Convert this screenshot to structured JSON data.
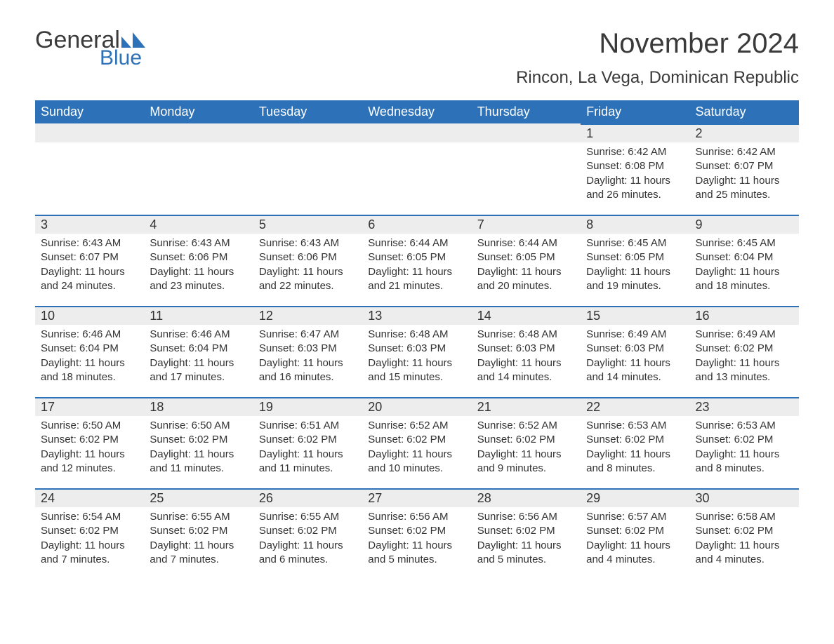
{
  "brand": {
    "name_part1": "General",
    "name_part2": "Blue",
    "flag_color": "#2d72b8",
    "text_color_dark": "#3a3a3a"
  },
  "title": "November 2024",
  "location": "Rincon, La Vega, Dominican Republic",
  "colors": {
    "header_bg": "#2d72b8",
    "header_text": "#ffffff",
    "daybar_bg": "#ededed",
    "daybar_border": "#2d72b8",
    "body_text": "#333333",
    "page_bg": "#ffffff"
  },
  "typography": {
    "title_fontsize": 40,
    "location_fontsize": 24,
    "weekday_fontsize": 18,
    "daynum_fontsize": 18,
    "body_fontsize": 15,
    "font_family": "Arial"
  },
  "weekdays": [
    "Sunday",
    "Monday",
    "Tuesday",
    "Wednesday",
    "Thursday",
    "Friday",
    "Saturday"
  ],
  "labels": {
    "sunrise": "Sunrise",
    "sunset": "Sunset",
    "daylight": "Daylight"
  },
  "weeks": [
    [
      null,
      null,
      null,
      null,
      null,
      {
        "day": "1",
        "sunrise": "6:42 AM",
        "sunset": "6:08 PM",
        "daylight": "11 hours and 26 minutes."
      },
      {
        "day": "2",
        "sunrise": "6:42 AM",
        "sunset": "6:07 PM",
        "daylight": "11 hours and 25 minutes."
      }
    ],
    [
      {
        "day": "3",
        "sunrise": "6:43 AM",
        "sunset": "6:07 PM",
        "daylight": "11 hours and 24 minutes."
      },
      {
        "day": "4",
        "sunrise": "6:43 AM",
        "sunset": "6:06 PM",
        "daylight": "11 hours and 23 minutes."
      },
      {
        "day": "5",
        "sunrise": "6:43 AM",
        "sunset": "6:06 PM",
        "daylight": "11 hours and 22 minutes."
      },
      {
        "day": "6",
        "sunrise": "6:44 AM",
        "sunset": "6:05 PM",
        "daylight": "11 hours and 21 minutes."
      },
      {
        "day": "7",
        "sunrise": "6:44 AM",
        "sunset": "6:05 PM",
        "daylight": "11 hours and 20 minutes."
      },
      {
        "day": "8",
        "sunrise": "6:45 AM",
        "sunset": "6:05 PM",
        "daylight": "11 hours and 19 minutes."
      },
      {
        "day": "9",
        "sunrise": "6:45 AM",
        "sunset": "6:04 PM",
        "daylight": "11 hours and 18 minutes."
      }
    ],
    [
      {
        "day": "10",
        "sunrise": "6:46 AM",
        "sunset": "6:04 PM",
        "daylight": "11 hours and 18 minutes."
      },
      {
        "day": "11",
        "sunrise": "6:46 AM",
        "sunset": "6:04 PM",
        "daylight": "11 hours and 17 minutes."
      },
      {
        "day": "12",
        "sunrise": "6:47 AM",
        "sunset": "6:03 PM",
        "daylight": "11 hours and 16 minutes."
      },
      {
        "day": "13",
        "sunrise": "6:48 AM",
        "sunset": "6:03 PM",
        "daylight": "11 hours and 15 minutes."
      },
      {
        "day": "14",
        "sunrise": "6:48 AM",
        "sunset": "6:03 PM",
        "daylight": "11 hours and 14 minutes."
      },
      {
        "day": "15",
        "sunrise": "6:49 AM",
        "sunset": "6:03 PM",
        "daylight": "11 hours and 14 minutes."
      },
      {
        "day": "16",
        "sunrise": "6:49 AM",
        "sunset": "6:02 PM",
        "daylight": "11 hours and 13 minutes."
      }
    ],
    [
      {
        "day": "17",
        "sunrise": "6:50 AM",
        "sunset": "6:02 PM",
        "daylight": "11 hours and 12 minutes."
      },
      {
        "day": "18",
        "sunrise": "6:50 AM",
        "sunset": "6:02 PM",
        "daylight": "11 hours and 11 minutes."
      },
      {
        "day": "19",
        "sunrise": "6:51 AM",
        "sunset": "6:02 PM",
        "daylight": "11 hours and 11 minutes."
      },
      {
        "day": "20",
        "sunrise": "6:52 AM",
        "sunset": "6:02 PM",
        "daylight": "11 hours and 10 minutes."
      },
      {
        "day": "21",
        "sunrise": "6:52 AM",
        "sunset": "6:02 PM",
        "daylight": "11 hours and 9 minutes."
      },
      {
        "day": "22",
        "sunrise": "6:53 AM",
        "sunset": "6:02 PM",
        "daylight": "11 hours and 8 minutes."
      },
      {
        "day": "23",
        "sunrise": "6:53 AM",
        "sunset": "6:02 PM",
        "daylight": "11 hours and 8 minutes."
      }
    ],
    [
      {
        "day": "24",
        "sunrise": "6:54 AM",
        "sunset": "6:02 PM",
        "daylight": "11 hours and 7 minutes."
      },
      {
        "day": "25",
        "sunrise": "6:55 AM",
        "sunset": "6:02 PM",
        "daylight": "11 hours and 7 minutes."
      },
      {
        "day": "26",
        "sunrise": "6:55 AM",
        "sunset": "6:02 PM",
        "daylight": "11 hours and 6 minutes."
      },
      {
        "day": "27",
        "sunrise": "6:56 AM",
        "sunset": "6:02 PM",
        "daylight": "11 hours and 5 minutes."
      },
      {
        "day": "28",
        "sunrise": "6:56 AM",
        "sunset": "6:02 PM",
        "daylight": "11 hours and 5 minutes."
      },
      {
        "day": "29",
        "sunrise": "6:57 AM",
        "sunset": "6:02 PM",
        "daylight": "11 hours and 4 minutes."
      },
      {
        "day": "30",
        "sunrise": "6:58 AM",
        "sunset": "6:02 PM",
        "daylight": "11 hours and 4 minutes."
      }
    ]
  ]
}
